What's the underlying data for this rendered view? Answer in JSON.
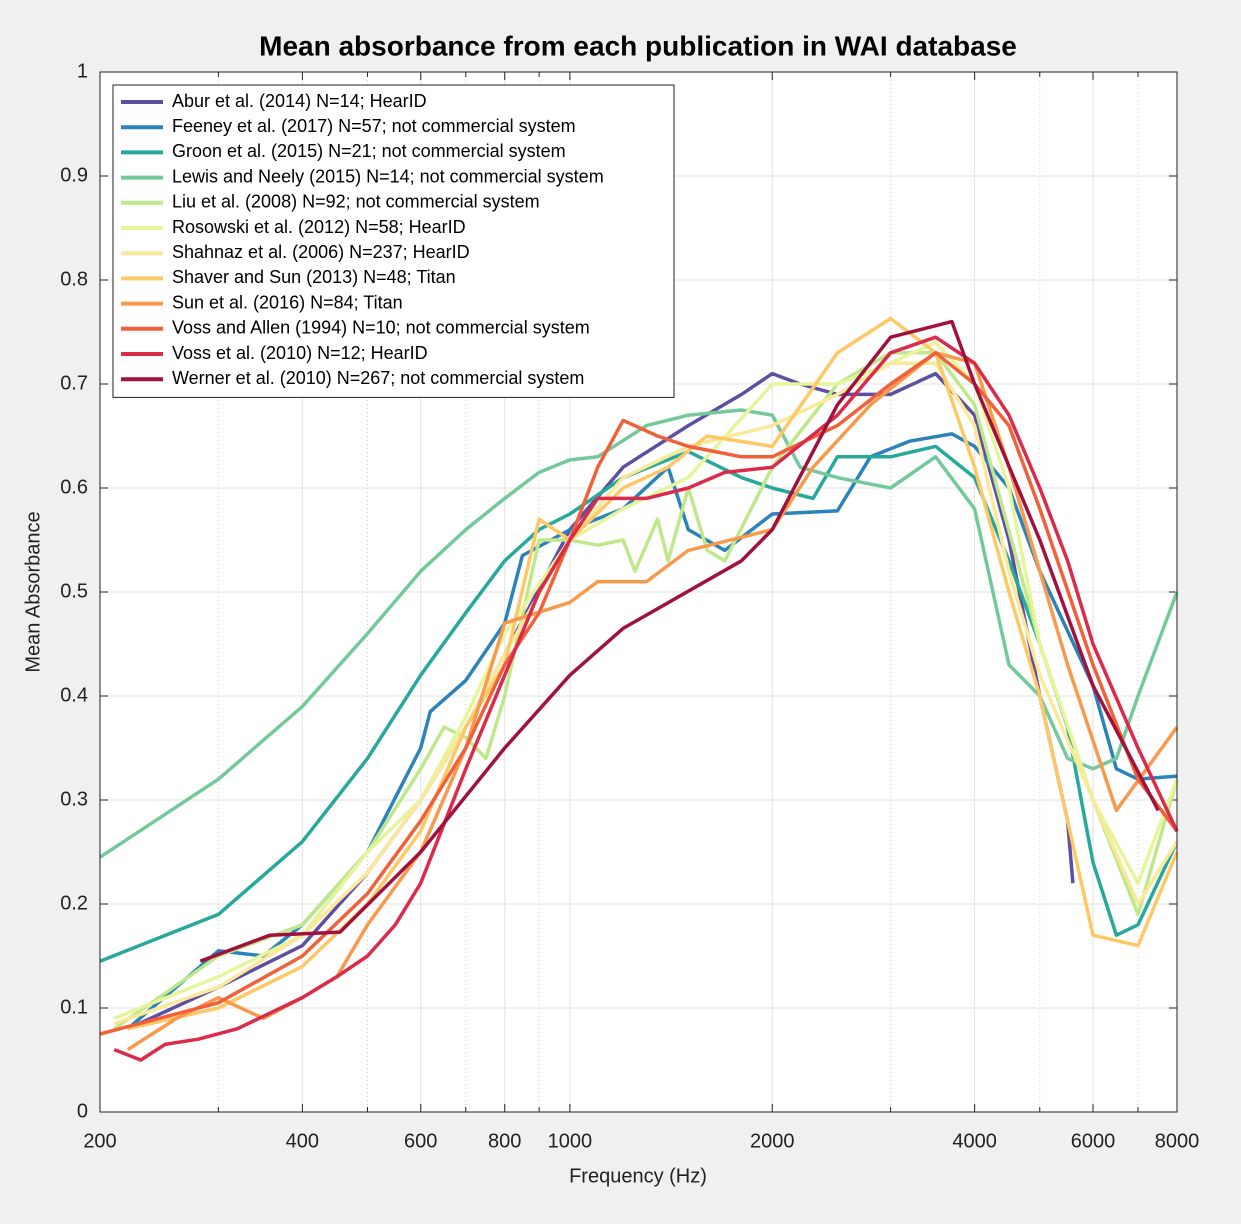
{
  "chart_data": {
    "type": "line",
    "title": "Mean absorbance from each publication in WAI database",
    "x_label": "Frequency (Hz)",
    "y_label": "Mean Absorbance",
    "xscale": "log",
    "xlim": [
      200,
      8000
    ],
    "xticks": [
      200,
      400,
      600,
      800,
      1000,
      2000,
      4000,
      6000,
      8000
    ],
    "xminorticks": [
      300,
      500,
      700,
      900,
      3000,
      5000,
      7000
    ],
    "ylim": [
      0,
      1
    ],
    "yticks": [
      0,
      0.1,
      0.2,
      0.3,
      0.4,
      0.5,
      0.6,
      0.7,
      0.8,
      0.9,
      1
    ],
    "grid": true,
    "legend": "upper left",
    "series": [
      {
        "name": "Abur et al. (2014) N=14; HearID",
        "color": "#5e4fa2",
        "x": [
          220,
          300,
          400,
          500,
          600,
          700,
          800,
          1000,
          1200,
          1500,
          1800,
          2000,
          2200,
          2500,
          3000,
          3500,
          4000,
          4500,
          5000,
          5500,
          5600
        ],
        "values": [
          0.08,
          0.12,
          0.16,
          0.23,
          0.3,
          0.37,
          0.44,
          0.56,
          0.62,
          0.66,
          0.69,
          0.71,
          0.7,
          0.69,
          0.69,
          0.71,
          0.67,
          0.55,
          0.4,
          0.28,
          0.22
        ]
      },
      {
        "name": "Feeney et al. (2017) N=57; not commercial system",
        "color": "#2b83ba",
        "x": [
          220,
          300,
          350,
          400,
          500,
          600,
          620,
          700,
          800,
          850,
          1000,
          1200,
          1400,
          1500,
          1700,
          2000,
          2500,
          2800,
          3200,
          3700,
          4000,
          4500,
          5000,
          6000,
          6500,
          7000,
          8000
        ],
        "values": [
          0.08,
          0.155,
          0.15,
          0.18,
          0.25,
          0.35,
          0.385,
          0.415,
          0.47,
          0.535,
          0.56,
          0.58,
          0.62,
          0.56,
          0.54,
          0.575,
          0.578,
          0.63,
          0.645,
          0.652,
          0.64,
          0.6,
          0.52,
          0.41,
          0.33,
          0.32,
          0.323
        ]
      },
      {
        "name": "Groon et al. (2015) N=21; not commercial system",
        "color": "#26a89a",
        "x": [
          200,
          300,
          400,
          500,
          600,
          700,
          800,
          900,
          1000,
          1200,
          1500,
          1800,
          2000,
          2300,
          2500,
          3000,
          3500,
          4000,
          4500,
          5000,
          5500,
          6000,
          6500,
          7000,
          8000
        ],
        "values": [
          0.145,
          0.19,
          0.26,
          0.34,
          0.42,
          0.48,
          0.53,
          0.56,
          0.575,
          0.61,
          0.635,
          0.61,
          0.6,
          0.59,
          0.63,
          0.63,
          0.64,
          0.61,
          0.53,
          0.45,
          0.37,
          0.24,
          0.17,
          0.18,
          0.26
        ]
      },
      {
        "name": "Lewis and Neely (2015) N=14; not commercial system",
        "color": "#74c99a",
        "x": [
          200,
          300,
          400,
          500,
          600,
          700,
          800,
          900,
          1000,
          1100,
          1300,
          1500,
          1800,
          2000,
          2200,
          2500,
          3000,
          3500,
          4000,
          4500,
          5000,
          5500,
          6000,
          6500,
          7000,
          8000
        ],
        "values": [
          0.245,
          0.32,
          0.39,
          0.46,
          0.52,
          0.56,
          0.59,
          0.615,
          0.627,
          0.63,
          0.66,
          0.67,
          0.675,
          0.67,
          0.62,
          0.61,
          0.6,
          0.63,
          0.58,
          0.43,
          0.4,
          0.34,
          0.33,
          0.34,
          0.4,
          0.5
        ]
      },
      {
        "name": "Liu et al. (2008) N=92; not commercial system",
        "color": "#bfe88a",
        "x": [
          210,
          300,
          400,
          500,
          600,
          650,
          700,
          750,
          800,
          900,
          1000,
          1100,
          1200,
          1250,
          1350,
          1400,
          1500,
          1600,
          1700,
          2000,
          2500,
          3000,
          3500,
          4000,
          5000,
          6000,
          7000,
          8000
        ],
        "values": [
          0.08,
          0.15,
          0.18,
          0.25,
          0.33,
          0.37,
          0.36,
          0.34,
          0.4,
          0.55,
          0.55,
          0.545,
          0.55,
          0.52,
          0.57,
          0.53,
          0.6,
          0.54,
          0.53,
          0.62,
          0.7,
          0.73,
          0.73,
          0.68,
          0.45,
          0.3,
          0.19,
          0.32
        ]
      },
      {
        "name": "Rosowski et al. (2012) N=58; HearID",
        "color": "#e6f59a",
        "x": [
          210,
          300,
          400,
          500,
          600,
          700,
          800,
          1000,
          1200,
          1500,
          2000,
          2500,
          3000,
          3500,
          4000,
          4500,
          5000,
          6000,
          7000,
          8000
        ],
        "values": [
          0.09,
          0.13,
          0.17,
          0.25,
          0.3,
          0.38,
          0.46,
          0.55,
          0.58,
          0.61,
          0.7,
          0.7,
          0.72,
          0.74,
          0.7,
          0.6,
          0.45,
          0.3,
          0.22,
          0.32
        ]
      },
      {
        "name": "Shahnaz et al. (2006) N=237; HearID",
        "color": "#fbe99a",
        "x": [
          210,
          300,
          400,
          500,
          600,
          700,
          800,
          1000,
          1200,
          1500,
          2000,
          2500,
          3000,
          3500,
          4000,
          4500,
          5000,
          6000,
          7000,
          8000
        ],
        "values": [
          0.085,
          0.12,
          0.17,
          0.23,
          0.3,
          0.37,
          0.44,
          0.55,
          0.61,
          0.64,
          0.66,
          0.69,
          0.72,
          0.72,
          0.66,
          0.52,
          0.42,
          0.3,
          0.2,
          0.26
        ]
      },
      {
        "name": "Shaver and Sun (2013) N=48; Titan",
        "color": "#fdc865",
        "x": [
          220,
          300,
          400,
          500,
          600,
          700,
          800,
          900,
          1000,
          1200,
          1400,
          1600,
          2000,
          2500,
          3000,
          3500,
          4000,
          4500,
          5000,
          5500,
          6000,
          7000,
          8000
        ],
        "values": [
          0.08,
          0.1,
          0.14,
          0.2,
          0.27,
          0.37,
          0.43,
          0.57,
          0.55,
          0.6,
          0.62,
          0.65,
          0.64,
          0.73,
          0.763,
          0.73,
          0.62,
          0.5,
          0.4,
          0.28,
          0.17,
          0.16,
          0.25
        ]
      },
      {
        "name": "Sun et al. (2016) N=84; Titan",
        "color": "#f89a4c",
        "x": [
          220,
          260,
          300,
          350,
          400,
          450,
          500,
          600,
          700,
          800,
          1000,
          1100,
          1300,
          1500,
          2000,
          2300,
          2800,
          3500,
          4000,
          4500,
          5500,
          6500,
          8000
        ],
        "values": [
          0.06,
          0.09,
          0.11,
          0.09,
          0.11,
          0.13,
          0.18,
          0.25,
          0.35,
          0.47,
          0.49,
          0.51,
          0.51,
          0.54,
          0.56,
          0.62,
          0.68,
          0.73,
          0.72,
          0.62,
          0.43,
          0.29,
          0.37
        ]
      },
      {
        "name": "Voss and Allen (1994) N=10; not commercial system",
        "color": "#f2603a",
        "x": [
          200,
          300,
          400,
          500,
          600,
          700,
          800,
          900,
          1000,
          1100,
          1200,
          1350,
          1500,
          1800,
          2000,
          2500,
          3000,
          3500,
          4000,
          4500,
          5000,
          6000,
          7000,
          8000
        ],
        "values": [
          0.075,
          0.105,
          0.15,
          0.21,
          0.28,
          0.35,
          0.43,
          0.48,
          0.55,
          0.62,
          0.665,
          0.65,
          0.64,
          0.63,
          0.63,
          0.66,
          0.7,
          0.73,
          0.7,
          0.66,
          0.58,
          0.43,
          0.32,
          0.27
        ]
      },
      {
        "name": "Voss et al. (2010) N=12; HearID",
        "color": "#dc2a4a",
        "x": [
          210,
          230,
          250,
          280,
          320,
          400,
          450,
          500,
          550,
          600,
          700,
          800,
          900,
          1000,
          1100,
          1300,
          1500,
          1700,
          2000,
          2500,
          3000,
          3500,
          4000,
          4500,
          5000,
          5500,
          6000,
          7000,
          8000
        ],
        "values": [
          0.06,
          0.05,
          0.065,
          0.07,
          0.08,
          0.11,
          0.13,
          0.15,
          0.18,
          0.22,
          0.33,
          0.42,
          0.5,
          0.55,
          0.59,
          0.59,
          0.6,
          0.615,
          0.62,
          0.67,
          0.73,
          0.745,
          0.72,
          0.67,
          0.6,
          0.53,
          0.45,
          0.35,
          0.27
        ]
      },
      {
        "name": "Werner et al. (2010) N=267; not commercial system",
        "color": "#a0123c",
        "x": [
          282,
          358,
          455,
          600,
          800,
          1000,
          1200,
          1800,
          2000,
          2500,
          3000,
          3700,
          4000,
          5000,
          6000,
          7500
        ],
        "values": [
          0.145,
          0.17,
          0.173,
          0.25,
          0.35,
          0.42,
          0.465,
          0.53,
          0.56,
          0.68,
          0.745,
          0.76,
          0.7,
          0.55,
          0.41,
          0.29
        ]
      }
    ]
  }
}
